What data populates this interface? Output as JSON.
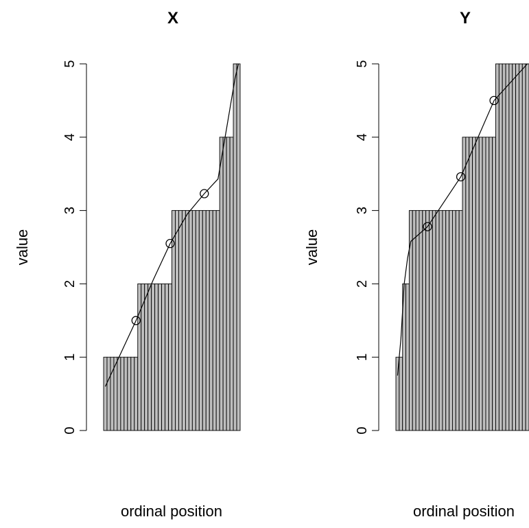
{
  "chart_data": [
    {
      "type": "bar",
      "title": "X",
      "xlabel": "ordinal position",
      "ylabel": "value",
      "ylim": [
        0,
        5
      ],
      "yticks": [
        "0",
        "1",
        "2",
        "3",
        "4",
        "5"
      ],
      "n_observations": 40,
      "values": [
        1,
        1,
        1,
        1,
        1,
        1,
        1,
        1,
        1,
        1,
        2,
        2,
        2,
        2,
        2,
        2,
        2,
        2,
        2,
        2,
        3,
        3,
        3,
        3,
        3,
        3,
        3,
        3,
        3,
        3,
        3,
        3,
        3,
        3,
        4,
        4,
        4,
        4,
        5,
        5
      ],
      "curve": {
        "x": [
          1,
          5,
          10,
          15,
          20,
          25,
          30,
          34,
          37,
          39,
          40
        ],
        "y": [
          0.6,
          1.0,
          1.5,
          2.05,
          2.55,
          2.95,
          3.23,
          3.43,
          4.25,
          4.8,
          5.0
        ]
      },
      "markers": {
        "x": [
          10,
          20,
          30
        ],
        "y": [
          1.5,
          2.55,
          3.23
        ]
      },
      "bar_fill": "#bebebe",
      "grid": false
    },
    {
      "type": "bar",
      "title": "Y",
      "xlabel": "ordinal position",
      "ylabel": "value",
      "ylim": [
        0,
        5
      ],
      "yticks": [
        "0",
        "1",
        "2",
        "3",
        "4",
        "5"
      ],
      "n_observations": 40,
      "values": [
        1,
        1,
        2,
        2,
        3,
        3,
        3,
        3,
        3,
        3,
        3,
        3,
        3,
        3,
        3,
        3,
        3,
        3,
        3,
        3,
        4,
        4,
        4,
        4,
        4,
        4,
        4,
        4,
        4,
        4,
        5,
        5,
        5,
        5,
        5,
        5,
        5,
        5,
        5,
        5
      ],
      "curve": {
        "x": [
          1,
          2,
          3,
          4,
          5,
          10,
          20,
          30,
          40
        ],
        "y": [
          0.75,
          1.25,
          2.0,
          2.35,
          2.58,
          2.78,
          3.46,
          4.5,
          5.0
        ]
      },
      "markers": {
        "x": [
          10,
          20,
          30
        ],
        "y": [
          2.78,
          3.46,
          4.5
        ]
      },
      "bar_fill": "#bebebe",
      "grid": false
    }
  ]
}
